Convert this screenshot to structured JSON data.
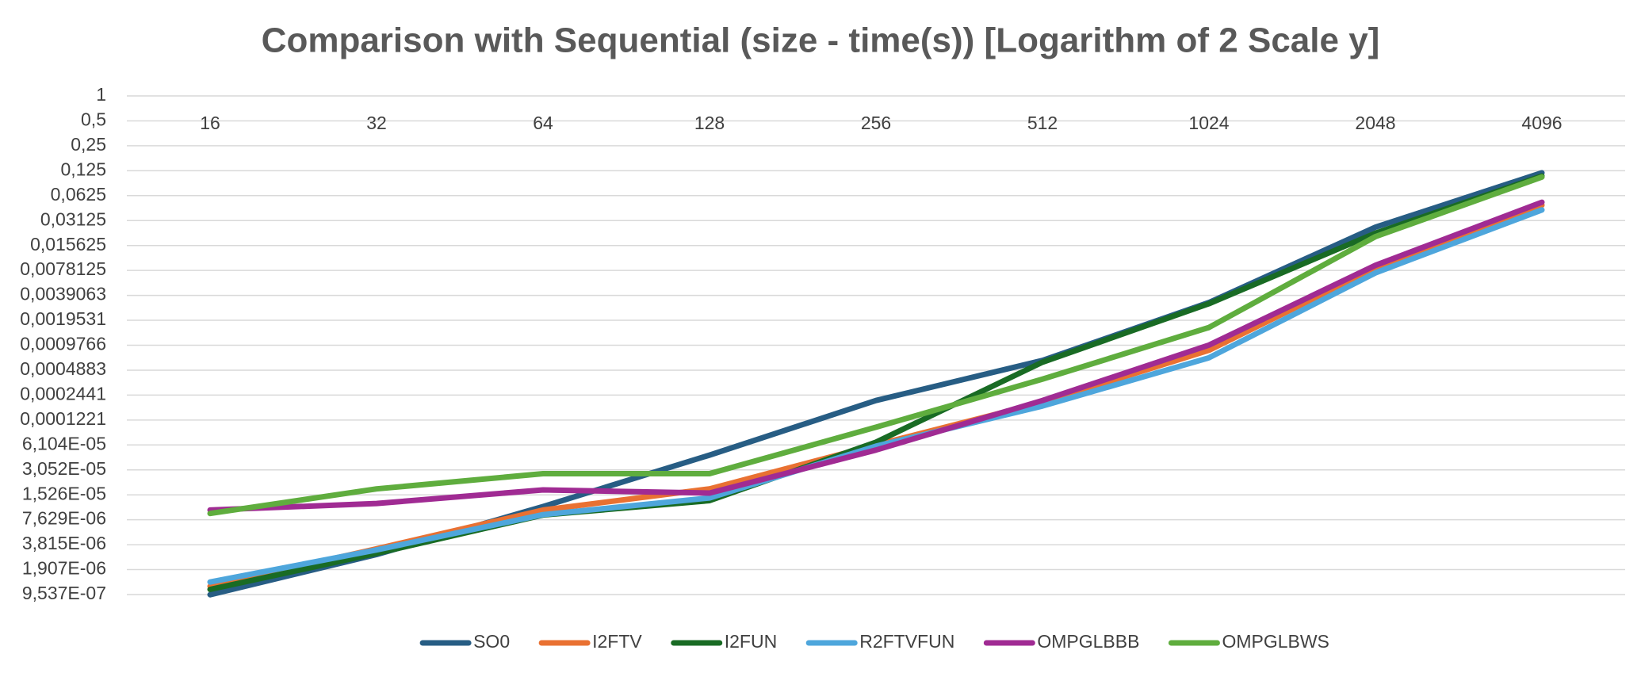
{
  "chart_data": {
    "type": "line",
    "title": "Comparison with Sequential (size - time(s)) [Logarithm of 2 Scale y]",
    "categories": [
      "16",
      "32",
      "64",
      "128",
      "256",
      "512",
      "1024",
      "2048",
      "4096"
    ],
    "y_scale": "log2",
    "grid": true,
    "legend": "bottom",
    "ylim": [
      9.537e-07,
      1
    ],
    "yticks": [
      1,
      {
        "value": 0.5,
        "label": "0,5"
      },
      {
        "value": 0.25,
        "label": "0,25"
      },
      {
        "value": 0.125,
        "label": "0,125"
      },
      {
        "value": 0.0625,
        "label": "0,0625"
      },
      {
        "value": 0.03125,
        "label": "0,03125"
      },
      {
        "value": 0.015625,
        "label": "0,015625"
      },
      {
        "value": 0.0078125,
        "label": "0,0078125"
      },
      {
        "value": 0.0039063,
        "label": "0,0039063"
      },
      {
        "value": 0.0019531,
        "label": "0,0019531"
      },
      {
        "value": 0.0009766,
        "label": "0,0009766"
      },
      {
        "value": 0.0004883,
        "label": "0,0004883"
      },
      {
        "value": 0.0002441,
        "label": "0,0002441"
      },
      {
        "value": 0.0001221,
        "label": "0,0001221"
      },
      {
        "value": 6.104e-05,
        "label": "6,104E-05"
      },
      {
        "value": 3.052e-05,
        "label": "3,052E-05"
      },
      {
        "value": 1.526e-05,
        "label": "1,526E-05"
      },
      {
        "value": 7.629e-06,
        "label": "7,629E-06"
      },
      {
        "value": 3.815e-06,
        "label": "3,815E-06"
      },
      {
        "value": 1.907e-06,
        "label": "1,907E-06"
      },
      {
        "value": 9.537e-07,
        "label": "9,537E-07"
      }
    ],
    "series": [
      {
        "name": "SO0",
        "color": "#275d84",
        "values": [
          9.5e-07,
          2.9e-06,
          1.1e-05,
          4.6e-05,
          0.00021,
          0.00064,
          0.0032,
          0.026,
          0.118
        ]
      },
      {
        "name": "I2FTV",
        "color": "#e97132",
        "values": [
          1.2e-06,
          3.4e-06,
          1e-05,
          1.8e-05,
          6.1e-05,
          0.0002,
          0.00085,
          0.0083,
          0.048
        ]
      },
      {
        "name": "I2FUN",
        "color": "#196b24",
        "values": [
          1.1e-06,
          3e-06,
          8.7e-06,
          1.3e-05,
          6.6e-05,
          0.00061,
          0.0031,
          0.022,
          0.108
        ]
      },
      {
        "name": "R2FTVFUN",
        "color": "#4ea6dc",
        "values": [
          1.35e-06,
          3.3e-06,
          8.8e-06,
          1.4e-05,
          5.9e-05,
          0.00018,
          0.00069,
          0.0073,
          0.042
        ]
      },
      {
        "name": "OMPGLBBB",
        "color": "#a02b93",
        "values": [
          1e-05,
          1.2e-05,
          1.75e-05,
          1.6e-05,
          5.3e-05,
          0.00021,
          0.00098,
          0.009,
          0.052
        ]
      },
      {
        "name": "OMPGLBWS",
        "color": "#5fad3e",
        "values": [
          9.1e-06,
          1.8e-05,
          2.75e-05,
          2.75e-05,
          0.0001,
          0.00038,
          0.0016,
          0.02,
          0.105
        ]
      }
    ]
  }
}
